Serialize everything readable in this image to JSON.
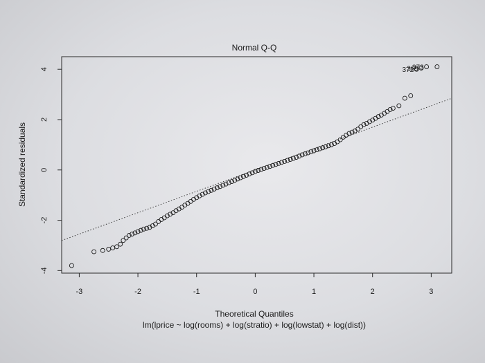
{
  "chart_data": {
    "type": "scatter",
    "title": "Normal Q-Q",
    "xlabel": "Theoretical Quantiles",
    "ylabel": "Standardized residuals",
    "caption": "lm(lprice ~ log(rooms) + log(stratio) + log(lowstat) + log(dist))",
    "xlim": [
      -3.3,
      3.35
    ],
    "ylim": [
      -4.1,
      4.5
    ],
    "x_ticks": [
      -3,
      -2,
      -1,
      0,
      1,
      2,
      3
    ],
    "y_ticks": [
      -4,
      -2,
      0,
      2,
      4
    ],
    "reference_line": {
      "slope": 0.85,
      "intercept": 0.0,
      "style": "dotted"
    },
    "outlier_labels": [
      {
        "text": "372",
        "x": 2.75,
        "y": 4.0
      },
      {
        "text": "373",
        "x": 2.92,
        "y": 4.1
      },
      {
        "text": "369",
        "x": 2.83,
        "y": 4.05
      }
    ],
    "points": [
      [
        -3.13,
        -3.8
      ],
      [
        -2.75,
        -3.25
      ],
      [
        -2.6,
        -3.2
      ],
      [
        -2.5,
        -3.15
      ],
      [
        -2.43,
        -3.1
      ],
      [
        -2.36,
        -3.05
      ],
      [
        -2.3,
        -2.95
      ],
      [
        -2.25,
        -2.8
      ],
      [
        -2.2,
        -2.7
      ],
      [
        -2.15,
        -2.6
      ],
      [
        -2.1,
        -2.55
      ],
      [
        -2.05,
        -2.5
      ],
      [
        -2.0,
        -2.45
      ],
      [
        -1.95,
        -2.4
      ],
      [
        -1.9,
        -2.35
      ],
      [
        -1.85,
        -2.32
      ],
      [
        -1.8,
        -2.28
      ],
      [
        -1.75,
        -2.22
      ],
      [
        -1.7,
        -2.15
      ],
      [
        -1.65,
        -2.05
      ],
      [
        -1.6,
        -1.97
      ],
      [
        -1.55,
        -1.9
      ],
      [
        -1.5,
        -1.82
      ],
      [
        -1.45,
        -1.76
      ],
      [
        -1.4,
        -1.7
      ],
      [
        -1.35,
        -1.62
      ],
      [
        -1.3,
        -1.55
      ],
      [
        -1.25,
        -1.48
      ],
      [
        -1.2,
        -1.4
      ],
      [
        -1.15,
        -1.33
      ],
      [
        -1.1,
        -1.25
      ],
      [
        -1.05,
        -1.17
      ],
      [
        -1.0,
        -1.1
      ],
      [
        -0.95,
        -1.03
      ],
      [
        -0.9,
        -0.97
      ],
      [
        -0.85,
        -0.91
      ],
      [
        -0.8,
        -0.86
      ],
      [
        -0.75,
        -0.81
      ],
      [
        -0.7,
        -0.76
      ],
      [
        -0.65,
        -0.71
      ],
      [
        -0.6,
        -0.66
      ],
      [
        -0.55,
        -0.61
      ],
      [
        -0.5,
        -0.56
      ],
      [
        -0.45,
        -0.51
      ],
      [
        -0.4,
        -0.46
      ],
      [
        -0.35,
        -0.41
      ],
      [
        -0.3,
        -0.36
      ],
      [
        -0.25,
        -0.31
      ],
      [
        -0.2,
        -0.26
      ],
      [
        -0.15,
        -0.21
      ],
      [
        -0.1,
        -0.16
      ],
      [
        -0.05,
        -0.11
      ],
      [
        0.0,
        -0.06
      ],
      [
        0.05,
        -0.02
      ],
      [
        0.1,
        0.02
      ],
      [
        0.15,
        0.06
      ],
      [
        0.2,
        0.1
      ],
      [
        0.25,
        0.14
      ],
      [
        0.3,
        0.18
      ],
      [
        0.35,
        0.22
      ],
      [
        0.4,
        0.26
      ],
      [
        0.45,
        0.3
      ],
      [
        0.5,
        0.34
      ],
      [
        0.55,
        0.38
      ],
      [
        0.6,
        0.42
      ],
      [
        0.65,
        0.46
      ],
      [
        0.7,
        0.5
      ],
      [
        0.75,
        0.55
      ],
      [
        0.8,
        0.6
      ],
      [
        0.85,
        0.64
      ],
      [
        0.9,
        0.68
      ],
      [
        0.95,
        0.72
      ],
      [
        1.0,
        0.76
      ],
      [
        1.05,
        0.8
      ],
      [
        1.1,
        0.84
      ],
      [
        1.15,
        0.88
      ],
      [
        1.2,
        0.92
      ],
      [
        1.25,
        0.96
      ],
      [
        1.3,
        1.0
      ],
      [
        1.35,
        1.05
      ],
      [
        1.4,
        1.12
      ],
      [
        1.45,
        1.2
      ],
      [
        1.5,
        1.3
      ],
      [
        1.55,
        1.38
      ],
      [
        1.6,
        1.45
      ],
      [
        1.65,
        1.5
      ],
      [
        1.7,
        1.55
      ],
      [
        1.75,
        1.62
      ],
      [
        1.8,
        1.72
      ],
      [
        1.85,
        1.8
      ],
      [
        1.9,
        1.85
      ],
      [
        1.95,
        1.92
      ],
      [
        2.0,
        1.98
      ],
      [
        2.05,
        2.05
      ],
      [
        2.1,
        2.12
      ],
      [
        2.15,
        2.18
      ],
      [
        2.2,
        2.25
      ],
      [
        2.25,
        2.32
      ],
      [
        2.3,
        2.4
      ],
      [
        2.35,
        2.45
      ],
      [
        2.45,
        2.55
      ],
      [
        2.55,
        2.85
      ],
      [
        2.65,
        2.95
      ],
      [
        2.75,
        4.0
      ],
      [
        2.83,
        4.05
      ],
      [
        2.92,
        4.1
      ],
      [
        3.1,
        4.1
      ]
    ]
  }
}
